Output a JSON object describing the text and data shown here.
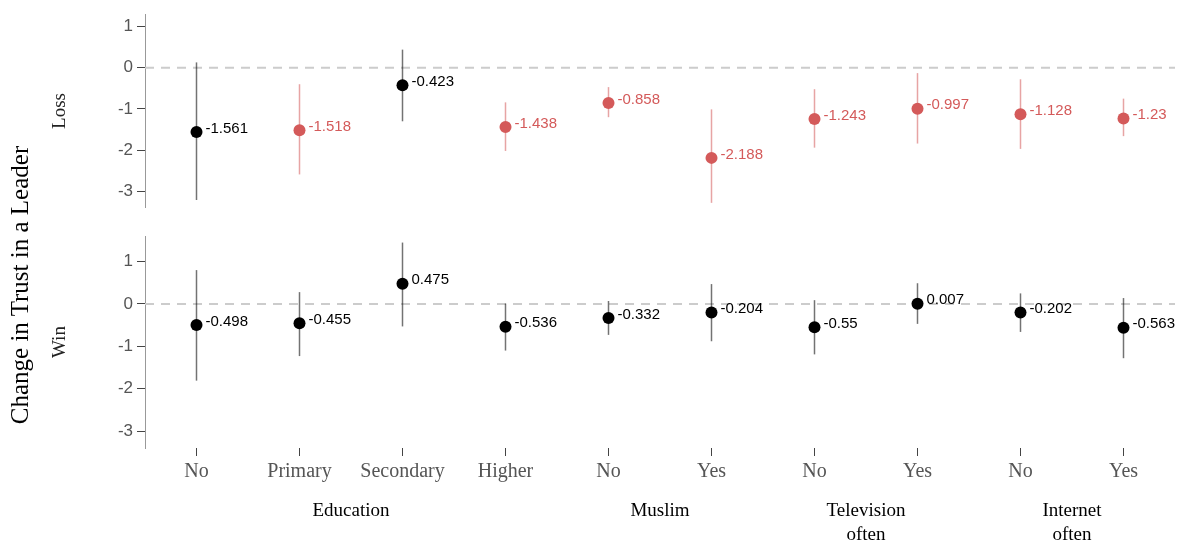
{
  "chart_data": [
    {
      "type": "scatter",
      "ylabel": "Loss",
      "annotations": [
        "Change in Trust in a Leader"
      ],
      "tick_labels": "y",
      "marker": "circle",
      "data_labels": true,
      "categories": [
        null,
        null,
        null,
        null,
        null,
        null,
        null,
        null,
        null,
        null
      ],
      "values": [
        -1.561,
        -1.518,
        -0.423,
        -1.438,
        -0.858,
        -2.188,
        -1.243,
        -0.997,
        -1.128,
        -1.23
      ],
      "colors": [
        "#000000",
        "#d45a5a",
        "#000000",
        "#d45a5a",
        "#d45a5a",
        "#d45a5a",
        "#d45a5a",
        "#d45a5a",
        "#d45a5a",
        "#d45a5a"
      ],
      "errors": [
        [
          -3.21,
          0.13
        ],
        [
          -2.59,
          -0.4
        ],
        [
          -1.3,
          0.44
        ],
        [
          -2.02,
          -0.84
        ],
        [
          -1.2,
          -0.47
        ],
        [
          -3.28,
          -1.01
        ],
        [
          -1.94,
          -0.52
        ],
        [
          -1.84,
          -0.13
        ],
        [
          -1.97,
          -0.28
        ],
        [
          -1.66,
          -0.75
        ]
      ],
      "ylim": [
        -3.4,
        1.3
      ],
      "yticks": [
        -3,
        -2,
        -1,
        0,
        1
      ],
      "ref_lines": [
        {
          "axis": "y",
          "value": 0,
          "color": "#cccccc",
          "line_style": "dashed"
        }
      ]
    },
    {
      "type": "scatter",
      "ylabel": "Win",
      "annotations": [
        "Education",
        "Muslim",
        "Television often",
        "Internet often"
      ],
      "marker": "circle",
      "data_labels": true,
      "categories": [
        "No",
        "Primary",
        "Secondary",
        "Higher",
        "No",
        "Yes",
        "No",
        "Yes",
        "No",
        "Yes"
      ],
      "values": [
        -0.498,
        -0.455,
        0.475,
        -0.536,
        -0.332,
        -0.204,
        -0.55,
        0.007,
        -0.202,
        -0.563
      ],
      "colors": [
        "#000000",
        "#000000",
        "#000000",
        "#000000",
        "#000000",
        "#000000",
        "#000000",
        "#000000",
        "#000000",
        "#000000"
      ],
      "errors": [
        [
          -1.81,
          0.8
        ],
        [
          -1.23,
          0.28
        ],
        [
          -0.53,
          1.45
        ],
        [
          -1.1,
          0.01
        ],
        [
          -0.73,
          0.07
        ],
        [
          -0.88,
          0.47
        ],
        [
          -1.19,
          0.09
        ],
        [
          -0.47,
          0.49
        ],
        [
          -0.66,
          0.25
        ],
        [
          -1.28,
          0.14
        ]
      ],
      "ylim": [
        -3.4,
        1.6
      ],
      "yticks": [
        -3,
        -2,
        -1,
        0,
        1
      ],
      "ref_lines": [
        {
          "axis": "y",
          "value": 0,
          "color": "#cccccc",
          "line_style": "dashed"
        }
      ]
    }
  ]
}
